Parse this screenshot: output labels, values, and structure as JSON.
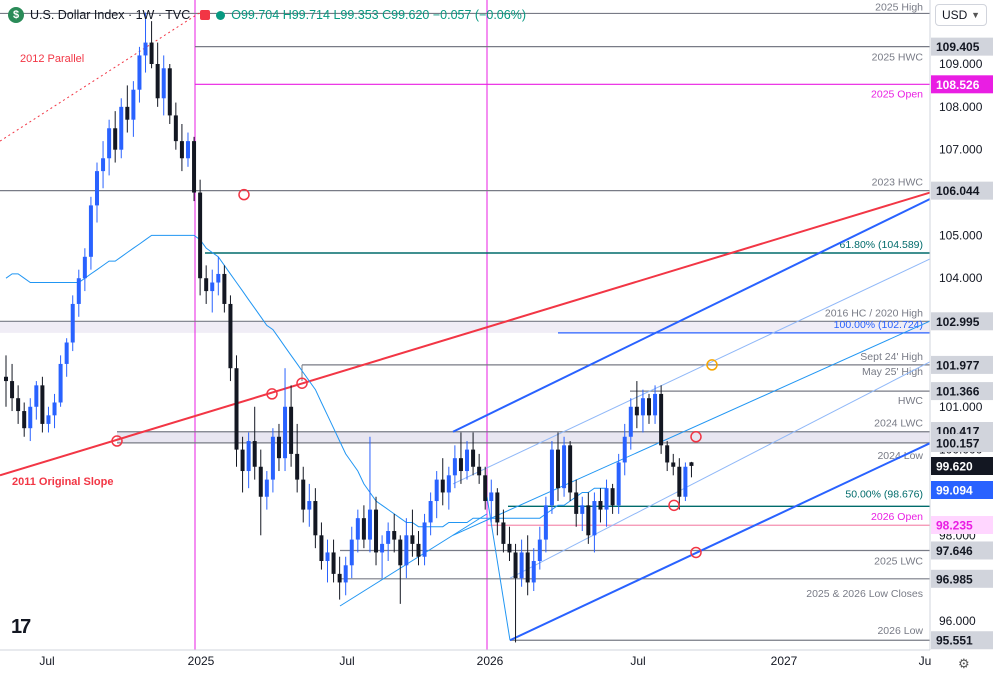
{
  "header": {
    "logo_letter": "$",
    "symbol": "U.S. Dollar Index · 1W · TVC",
    "open": "O99.704",
    "high": "H99.714",
    "low": "L99.353",
    "close": "C99.620",
    "change": "−0.057 (−0.06%)"
  },
  "currency_select": {
    "value": "USD"
  },
  "icons": {
    "logo": "tradingview-logo-icon",
    "settings": "gear-icon",
    "dropdown": "chevron-down-icon"
  },
  "tv_logo_text": "17",
  "colors": {
    "up": "#2962ff",
    "down": "#131722",
    "red": "#f23645",
    "magenta": "#e91ee3",
    "teal": "#006b6b",
    "ma": "#2196f3"
  },
  "chart_data": {
    "type": "candlestick",
    "x_ticks": [
      "Jul",
      "2025",
      "Jul",
      "2026",
      "Jul",
      "2027",
      "Ju"
    ],
    "y_ticks": [
      96.0,
      97.0,
      98.0,
      99.0,
      100.0,
      101.0,
      102.0,
      103.0,
      104.0,
      105.0,
      106.0,
      107.0,
      108.0,
      109.0
    ],
    "ylim": [
      95.3,
      110.2
    ],
    "price_labels": [
      {
        "value": "109.405",
        "price": 109.405,
        "style": "gray"
      },
      {
        "value": "108.526",
        "price": 108.526,
        "style": "magenta"
      },
      {
        "value": "106.044",
        "price": 106.044,
        "style": "gray"
      },
      {
        "value": "102.995",
        "price": 102.995,
        "style": "gray"
      },
      {
        "value": "101.977",
        "price": 101.977,
        "style": "gray"
      },
      {
        "value": "101.366",
        "price": 101.366,
        "style": "gray"
      },
      {
        "value": "100.417",
        "price": 100.417,
        "style": "gray"
      },
      {
        "value": "100.157",
        "price": 100.157,
        "style": "gray"
      },
      {
        "value": "99.620",
        "price": 99.62,
        "style": "dark"
      },
      {
        "value": "99.094",
        "price": 99.094,
        "style": "blue"
      },
      {
        "value": "98.235",
        "price": 98.235,
        "style": "pink"
      },
      {
        "value": "97.646",
        "price": 97.646,
        "style": "gray"
      },
      {
        "value": "96.985",
        "price": 96.985,
        "style": "gray"
      },
      {
        "value": "95.551",
        "price": 95.551,
        "style": "gray"
      }
    ],
    "horizontal_levels": [
      {
        "label": "2025 High",
        "price": 110.18,
        "color": "#787b86"
      },
      {
        "label": "2025 HWC",
        "price": 109.405,
        "color": "#787b86"
      },
      {
        "label": "2025 Open",
        "price": 108.526,
        "color": "#e91ee3"
      },
      {
        "label": "2023 HWC",
        "price": 106.044,
        "color": "#787b86"
      },
      {
        "label": "61.80% (104.589)",
        "price": 104.589,
        "color": "#006b6b"
      },
      {
        "label": "2016 HC / 2020 High",
        "price": 102.995,
        "color": "#787b86"
      },
      {
        "label": "100.00% (102.724)",
        "price": 102.724,
        "color": "#2962ff"
      },
      {
        "label": "Sept 24' High",
        "price": 101.977,
        "color": "#787b86"
      },
      {
        "label": "May 25' High",
        "price": 101.977,
        "color": "#787b86"
      },
      {
        "label": "HWC",
        "price": 101.366,
        "color": "#787b86"
      },
      {
        "label": "2024 LWC",
        "price": 100.417,
        "color": "#787b86"
      },
      {
        "label": "2024 Low",
        "price": 100.157,
        "color": "#787b86"
      },
      {
        "label": "50.00% (98.676)",
        "price": 98.676,
        "color": "#006b6b"
      },
      {
        "label": "2026 Open",
        "price": 98.235,
        "color": "#f48fb1"
      },
      {
        "label": "2025 LWC",
        "price": 97.646,
        "color": "#787b86"
      },
      {
        "label": "2025 & 2026 Low Closes",
        "price": 96.985,
        "color": "#787b86"
      },
      {
        "label": "2026 Low",
        "price": 95.551,
        "color": "#787b86"
      }
    ],
    "trend_labels": [
      "2012 Parallel",
      "2011 Original Slope"
    ],
    "candles_weekly": [
      {
        "o": 101.7,
        "h": 102.2,
        "l": 101.0,
        "c": 101.6
      },
      {
        "o": 101.6,
        "h": 102.0,
        "l": 100.9,
        "c": 101.2
      },
      {
        "o": 101.2,
        "h": 101.5,
        "l": 100.6,
        "c": 100.9
      },
      {
        "o": 100.9,
        "h": 101.1,
        "l": 100.3,
        "c": 100.5
      },
      {
        "o": 100.5,
        "h": 101.2,
        "l": 100.2,
        "c": 101.0
      },
      {
        "o": 101.0,
        "h": 101.6,
        "l": 100.7,
        "c": 101.5
      },
      {
        "o": 101.5,
        "h": 101.7,
        "l": 100.4,
        "c": 100.6
      },
      {
        "o": 100.6,
        "h": 101.0,
        "l": 100.4,
        "c": 100.8
      },
      {
        "o": 100.8,
        "h": 101.3,
        "l": 100.5,
        "c": 101.1
      },
      {
        "o": 101.1,
        "h": 102.2,
        "l": 101.0,
        "c": 102.0
      },
      {
        "o": 102.0,
        "h": 102.6,
        "l": 101.7,
        "c": 102.5
      },
      {
        "o": 102.5,
        "h": 103.6,
        "l": 102.3,
        "c": 103.4
      },
      {
        "o": 103.4,
        "h": 104.2,
        "l": 103.1,
        "c": 104.0
      },
      {
        "o": 104.0,
        "h": 104.7,
        "l": 103.7,
        "c": 104.5
      },
      {
        "o": 104.5,
        "h": 105.9,
        "l": 104.2,
        "c": 105.7
      },
      {
        "o": 105.7,
        "h": 106.7,
        "l": 105.3,
        "c": 106.5
      },
      {
        "o": 106.5,
        "h": 107.2,
        "l": 106.1,
        "c": 106.8
      },
      {
        "o": 106.8,
        "h": 107.7,
        "l": 106.4,
        "c": 107.5
      },
      {
        "o": 107.5,
        "h": 107.9,
        "l": 106.7,
        "c": 107.0
      },
      {
        "o": 107.0,
        "h": 108.2,
        "l": 106.8,
        "c": 108.0
      },
      {
        "o": 108.0,
        "h": 108.5,
        "l": 107.4,
        "c": 107.7
      },
      {
        "o": 107.7,
        "h": 108.6,
        "l": 107.3,
        "c": 108.4
      },
      {
        "o": 108.4,
        "h": 109.4,
        "l": 108.1,
        "c": 109.2
      },
      {
        "o": 109.2,
        "h": 110.2,
        "l": 108.8,
        "c": 109.5
      },
      {
        "o": 109.5,
        "h": 110.0,
        "l": 108.9,
        "c": 109.0
      },
      {
        "o": 109.0,
        "h": 109.5,
        "l": 108.0,
        "c": 108.2
      },
      {
        "o": 108.2,
        "h": 109.2,
        "l": 107.8,
        "c": 108.9
      },
      {
        "o": 108.9,
        "h": 109.0,
        "l": 107.6,
        "c": 107.8
      },
      {
        "o": 107.8,
        "h": 108.1,
        "l": 107.0,
        "c": 107.2
      },
      {
        "o": 107.2,
        "h": 107.6,
        "l": 106.5,
        "c": 106.8
      },
      {
        "o": 106.8,
        "h": 107.4,
        "l": 106.6,
        "c": 107.2
      },
      {
        "o": 107.2,
        "h": 107.3,
        "l": 105.8,
        "c": 106.0
      },
      {
        "o": 106.0,
        "h": 106.3,
        "l": 103.6,
        "c": 104.0
      },
      {
        "o": 104.0,
        "h": 104.3,
        "l": 103.4,
        "c": 103.7
      },
      {
        "o": 103.7,
        "h": 104.2,
        "l": 103.2,
        "c": 103.9
      },
      {
        "o": 103.9,
        "h": 104.5,
        "l": 103.6,
        "c": 104.1
      },
      {
        "o": 104.1,
        "h": 104.3,
        "l": 103.2,
        "c": 103.4
      },
      {
        "o": 103.4,
        "h": 103.6,
        "l": 101.6,
        "c": 101.9
      },
      {
        "o": 101.9,
        "h": 102.2,
        "l": 99.6,
        "c": 100.0
      },
      {
        "o": 100.0,
        "h": 100.3,
        "l": 99.0,
        "c": 99.5
      },
      {
        "o": 99.5,
        "h": 100.4,
        "l": 99.1,
        "c": 100.2
      },
      {
        "o": 100.2,
        "h": 101.0,
        "l": 99.3,
        "c": 99.6
      },
      {
        "o": 99.6,
        "h": 100.0,
        "l": 98.0,
        "c": 98.9
      },
      {
        "o": 98.9,
        "h": 99.5,
        "l": 98.6,
        "c": 99.3
      },
      {
        "o": 99.3,
        "h": 100.5,
        "l": 99.0,
        "c": 100.3
      },
      {
        "o": 100.3,
        "h": 100.6,
        "l": 99.5,
        "c": 99.8
      },
      {
        "o": 99.8,
        "h": 101.9,
        "l": 99.5,
        "c": 101.0
      },
      {
        "o": 101.0,
        "h": 101.5,
        "l": 99.6,
        "c": 99.9
      },
      {
        "o": 99.9,
        "h": 100.6,
        "l": 99.0,
        "c": 99.3
      },
      {
        "o": 99.3,
        "h": 99.6,
        "l": 98.3,
        "c": 98.6
      },
      {
        "o": 98.6,
        "h": 99.2,
        "l": 98.2,
        "c": 98.8
      },
      {
        "o": 98.8,
        "h": 99.1,
        "l": 97.7,
        "c": 98.0
      },
      {
        "o": 98.0,
        "h": 98.3,
        "l": 97.2,
        "c": 97.4
      },
      {
        "o": 97.4,
        "h": 97.9,
        "l": 96.9,
        "c": 97.6
      },
      {
        "o": 97.6,
        "h": 97.9,
        "l": 96.9,
        "c": 97.1
      },
      {
        "o": 97.1,
        "h": 97.5,
        "l": 96.5,
        "c": 96.9
      },
      {
        "o": 96.9,
        "h": 97.5,
        "l": 96.6,
        "c": 97.3
      },
      {
        "o": 97.3,
        "h": 98.2,
        "l": 97.0,
        "c": 97.9
      },
      {
        "o": 97.9,
        "h": 98.6,
        "l": 97.6,
        "c": 98.4
      },
      {
        "o": 98.4,
        "h": 98.7,
        "l": 97.7,
        "c": 97.9
      },
      {
        "o": 97.9,
        "h": 100.3,
        "l": 97.6,
        "c": 98.6
      },
      {
        "o": 98.6,
        "h": 98.9,
        "l": 97.3,
        "c": 97.6
      },
      {
        "o": 97.6,
        "h": 98.0,
        "l": 97.0,
        "c": 97.8
      },
      {
        "o": 97.8,
        "h": 98.3,
        "l": 97.4,
        "c": 98.1
      },
      {
        "o": 98.1,
        "h": 98.5,
        "l": 97.6,
        "c": 97.9
      },
      {
        "o": 97.9,
        "h": 98.0,
        "l": 96.4,
        "c": 97.3
      },
      {
        "o": 97.3,
        "h": 98.4,
        "l": 97.0,
        "c": 98.0
      },
      {
        "o": 98.0,
        "h": 98.6,
        "l": 97.5,
        "c": 97.8
      },
      {
        "o": 97.8,
        "h": 98.1,
        "l": 97.3,
        "c": 97.5
      },
      {
        "o": 97.5,
        "h": 98.5,
        "l": 97.3,
        "c": 98.3
      },
      {
        "o": 98.3,
        "h": 99.0,
        "l": 98.0,
        "c": 98.8
      },
      {
        "o": 98.8,
        "h": 99.5,
        "l": 98.4,
        "c": 99.3
      },
      {
        "o": 99.3,
        "h": 99.8,
        "l": 98.7,
        "c": 99.0
      },
      {
        "o": 99.0,
        "h": 99.6,
        "l": 98.6,
        "c": 99.4
      },
      {
        "o": 99.4,
        "h": 100.1,
        "l": 99.1,
        "c": 99.8
      },
      {
        "o": 99.8,
        "h": 100.4,
        "l": 99.2,
        "c": 99.5
      },
      {
        "o": 99.5,
        "h": 100.2,
        "l": 99.3,
        "c": 100.0
      },
      {
        "o": 100.0,
        "h": 100.4,
        "l": 99.4,
        "c": 99.6
      },
      {
        "o": 99.6,
        "h": 99.9,
        "l": 99.2,
        "c": 99.4
      },
      {
        "o": 99.4,
        "h": 99.6,
        "l": 98.6,
        "c": 98.8
      },
      {
        "o": 98.8,
        "h": 99.3,
        "l": 98.3,
        "c": 99.0
      },
      {
        "o": 99.0,
        "h": 99.1,
        "l": 98.0,
        "c": 98.3
      },
      {
        "o": 98.3,
        "h": 98.6,
        "l": 97.6,
        "c": 97.8
      },
      {
        "o": 97.8,
        "h": 98.2,
        "l": 97.4,
        "c": 97.6
      },
      {
        "o": 97.6,
        "h": 97.8,
        "l": 95.5,
        "c": 97.0
      },
      {
        "o": 97.0,
        "h": 97.9,
        "l": 96.8,
        "c": 97.6
      },
      {
        "o": 97.6,
        "h": 98.0,
        "l": 96.6,
        "c": 96.9
      },
      {
        "o": 96.9,
        "h": 97.7,
        "l": 96.7,
        "c": 97.4
      },
      {
        "o": 97.4,
        "h": 98.2,
        "l": 97.2,
        "c": 97.9
      },
      {
        "o": 97.9,
        "h": 98.9,
        "l": 97.6,
        "c": 98.7
      },
      {
        "o": 98.7,
        "h": 100.2,
        "l": 98.5,
        "c": 100.0
      },
      {
        "o": 100.0,
        "h": 100.4,
        "l": 98.8,
        "c": 99.1
      },
      {
        "o": 99.1,
        "h": 100.3,
        "l": 98.9,
        "c": 100.1
      },
      {
        "o": 100.1,
        "h": 100.2,
        "l": 98.8,
        "c": 99.0
      },
      {
        "o": 99.0,
        "h": 99.3,
        "l": 98.2,
        "c": 98.5
      },
      {
        "o": 98.5,
        "h": 98.9,
        "l": 98.1,
        "c": 98.7
      },
      {
        "o": 98.7,
        "h": 99.0,
        "l": 97.8,
        "c": 98.0
      },
      {
        "o": 98.0,
        "h": 99.0,
        "l": 97.6,
        "c": 98.8
      },
      {
        "o": 98.8,
        "h": 99.1,
        "l": 98.3,
        "c": 98.6
      },
      {
        "o": 98.6,
        "h": 99.3,
        "l": 98.2,
        "c": 99.1
      },
      {
        "o": 99.1,
        "h": 99.2,
        "l": 98.5,
        "c": 98.7
      },
      {
        "o": 98.7,
        "h": 99.9,
        "l": 98.5,
        "c": 99.7
      },
      {
        "o": 99.7,
        "h": 100.6,
        "l": 99.4,
        "c": 100.3
      },
      {
        "o": 100.3,
        "h": 101.2,
        "l": 100.0,
        "c": 101.0
      },
      {
        "o": 101.0,
        "h": 101.6,
        "l": 100.5,
        "c": 100.8
      },
      {
        "o": 100.8,
        "h": 101.4,
        "l": 100.4,
        "c": 101.2
      },
      {
        "o": 101.2,
        "h": 101.3,
        "l": 100.6,
        "c": 100.8
      },
      {
        "o": 100.8,
        "h": 101.5,
        "l": 100.6,
        "c": 101.3
      },
      {
        "o": 101.3,
        "h": 101.5,
        "l": 99.9,
        "c": 100.1
      },
      {
        "o": 100.1,
        "h": 100.2,
        "l": 99.5,
        "c": 99.7
      },
      {
        "o": 99.7,
        "h": 99.9,
        "l": 99.4,
        "c": 99.6
      },
      {
        "o": 99.6,
        "h": 99.8,
        "l": 98.6,
        "c": 98.9
      },
      {
        "o": 98.9,
        "h": 99.7,
        "l": 98.8,
        "c": 99.6
      },
      {
        "o": 99.704,
        "h": 99.714,
        "l": 99.353,
        "c": 99.62
      }
    ],
    "moving_average": [
      104.0,
      104.1,
      104.1,
      104.0,
      103.9,
      103.9,
      103.9,
      103.9,
      103.9,
      103.9,
      103.9,
      103.9,
      103.9,
      104.0,
      104.1,
      104.2,
      104.3,
      104.4,
      104.4,
      104.5,
      104.6,
      104.7,
      104.8,
      104.9,
      105.0,
      105.0,
      105.0,
      105.0,
      105.0,
      105.0,
      105.0,
      105.0,
      104.9,
      104.7,
      104.6,
      104.5,
      104.3,
      104.1,
      103.9,
      103.7,
      103.5,
      103.3,
      103.1,
      102.9,
      102.8,
      102.6,
      102.4,
      102.2,
      102.0,
      101.8,
      101.6,
      101.4,
      101.1,
      100.8,
      100.5,
      100.2,
      99.9,
      99.7,
      99.5,
      99.2,
      99.0,
      98.8,
      98.7,
      98.6,
      98.5,
      98.4,
      98.3,
      98.3,
      98.2,
      98.2,
      98.2,
      98.2,
      98.2,
      98.3,
      98.3,
      98.3,
      98.3,
      98.4,
      98.4,
      98.4,
      98.4,
      98.4,
      98.4,
      98.4,
      98.4,
      98.4,
      98.4,
      98.4,
      98.4,
      98.5,
      98.6,
      98.7,
      98.7,
      98.8,
      98.9,
      99.0,
      99.0,
      99.1,
      99.1,
      99.1
    ]
  }
}
